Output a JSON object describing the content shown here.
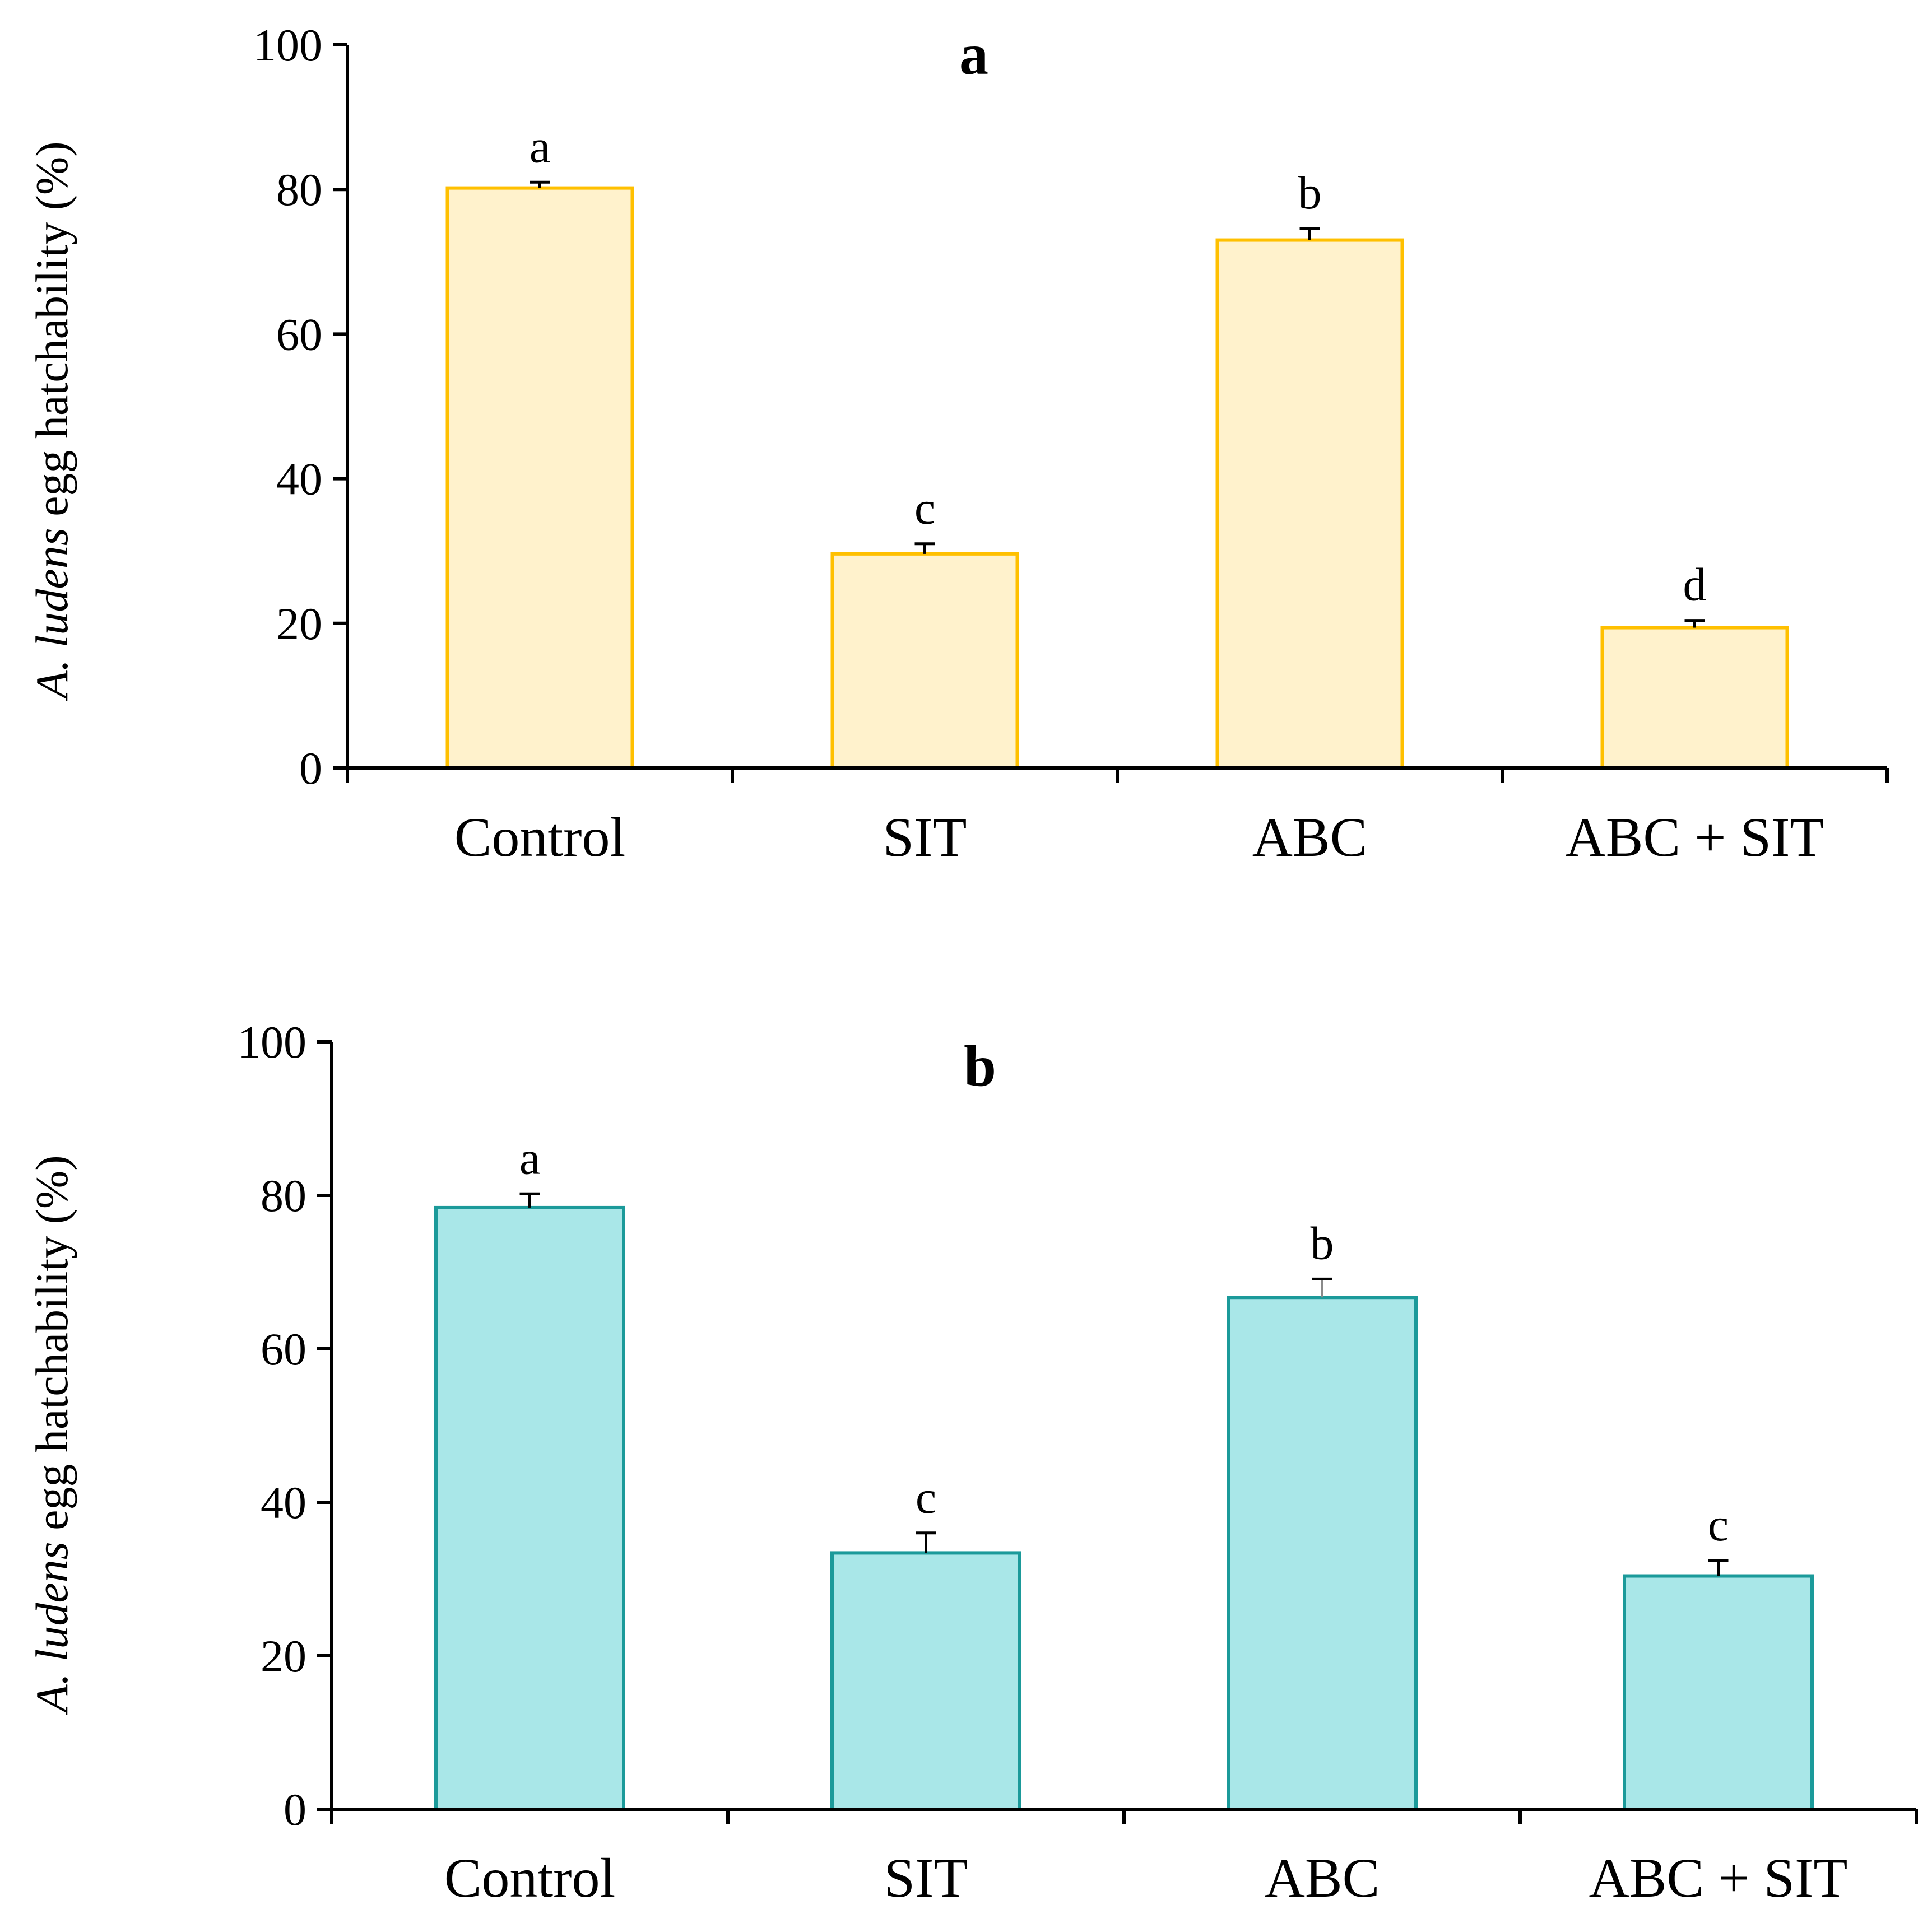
{
  "chart_data": [
    {
      "type": "bar",
      "title": "a",
      "ylabel_italic": "A. ludens",
      "ylabel_rest": " egg hatchability (%)",
      "categories": [
        "Control",
        "SIT",
        "ABC",
        "ABC + SIT"
      ],
      "values": [
        80.2,
        29.6,
        73.0,
        19.4
      ],
      "errors": [
        0.8,
        1.4,
        1.6,
        1.0
      ],
      "significance": [
        "a",
        "c",
        "b",
        "d"
      ],
      "ylim": [
        0,
        100
      ],
      "yticks": [
        "0",
        "20",
        "40",
        "60",
        "80",
        "100"
      ],
      "bar_fill": "#FFF2CC",
      "bar_stroke": "#FFC000"
    },
    {
      "type": "bar",
      "title": "b",
      "ylabel_italic": "A. ludens",
      "ylabel_rest": " egg hatchability (%)",
      "categories": [
        "Control",
        "SIT",
        "ABC",
        "ABC + SIT"
      ],
      "values": [
        78.4,
        33.4,
        66.7,
        30.4
      ],
      "errors": [
        1.8,
        2.6,
        2.4,
        2.0
      ],
      "significance": [
        "a",
        "c",
        "b",
        "c"
      ],
      "ylim": [
        0,
        100
      ],
      "yticks": [
        "0",
        "20",
        "40",
        "60",
        "80",
        "100"
      ],
      "bar_fill": "#A9E7E8",
      "bar_stroke": "#1B9A9A"
    }
  ]
}
